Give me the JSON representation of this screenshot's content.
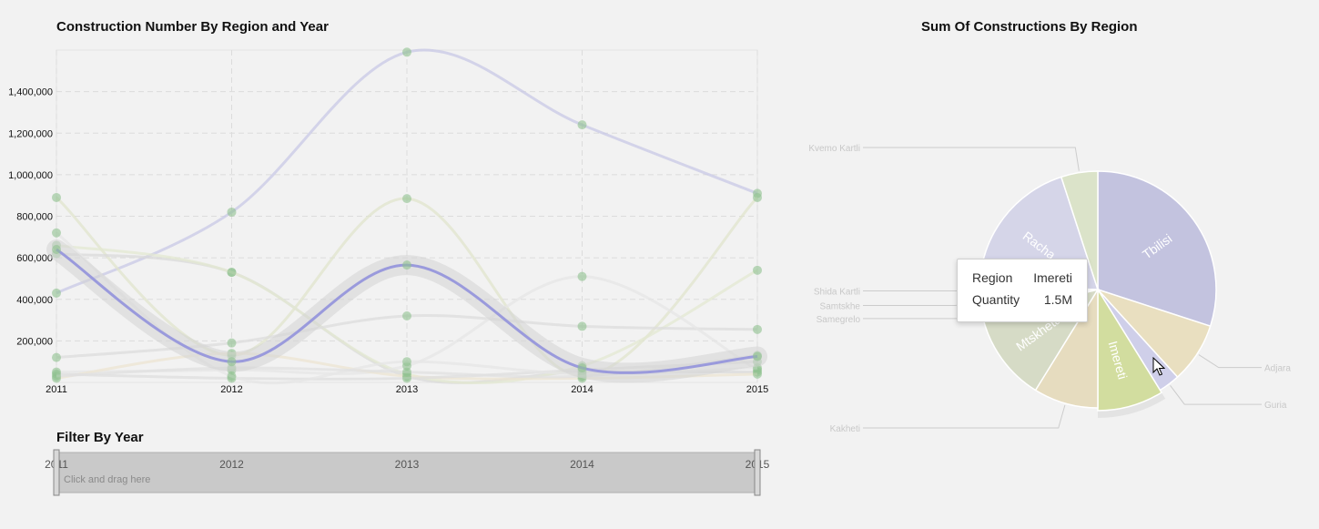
{
  "titles": {
    "line": "Construction Number By Region and Year",
    "pie": "Sum Of Constructions By Region",
    "filter": "Filter By Year"
  },
  "filter": {
    "hint": "Click and drag here",
    "years": [
      "2011",
      "2012",
      "2013",
      "2014",
      "2015"
    ],
    "range": [
      "2011",
      "2015"
    ]
  },
  "tooltip": {
    "region_label": "Region",
    "region_value": "Imereti",
    "quantity_label": "Quantity",
    "quantity_value": "1.5M"
  },
  "colors": {
    "highlight": "#9a9adc",
    "marker": "#8fc28f",
    "purple": "#c3c3df",
    "green": "#d8e2bd",
    "sand": "#e9dfc0",
    "grey": "#cfcfcf"
  },
  "chart_data": [
    {
      "type": "line",
      "title": "Construction Number By Region and Year",
      "x": [
        "2011",
        "2012",
        "2013",
        "2014",
        "2015"
      ],
      "yticks": [
        200000,
        400000,
        600000,
        800000,
        1000000,
        1200000,
        1400000
      ],
      "ytick_labels": [
        "200,000",
        "400,000",
        "600,000",
        "800,000",
        "1,000,000",
        "1,200,000",
        "1,400,000"
      ],
      "ylim": [
        0,
        1600000
      ],
      "grid": true,
      "highlighted_series": "Imereti",
      "series": [
        {
          "name": "Tbilisi",
          "color": "#c8c8e6",
          "values": [
            430000,
            820000,
            1590000,
            1240000,
            910000
          ]
        },
        {
          "name": "Imereti",
          "color": "#9a9adc",
          "values": [
            640000,
            100000,
            565000,
            70000,
            125000
          ]
        },
        {
          "name": "Adjara",
          "color": "#e0e4cc",
          "values": [
            890000,
            130000,
            885000,
            30000,
            890000
          ]
        },
        {
          "name": "Racha",
          "color": "#d9d9d9",
          "values": [
            620000,
            530000,
            30000,
            50000,
            50000
          ]
        },
        {
          "name": "Kvemo Kartli",
          "color": "#e3e8d2",
          "values": [
            660000,
            530000,
            40000,
            80000,
            540000
          ]
        },
        {
          "name": "Mtskheta",
          "color": "#dcdcdc",
          "values": [
            120000,
            190000,
            320000,
            270000,
            255000
          ]
        },
        {
          "name": "Kakheti",
          "color": "#e5e5e5",
          "values": [
            50000,
            60000,
            80000,
            510000,
            60000
          ]
        },
        {
          "name": "Shida Kartli",
          "color": "#ece4d2",
          "values": [
            20000,
            140000,
            30000,
            20000,
            40000
          ]
        },
        {
          "name": "Samtskhe",
          "color": "#dedede",
          "values": [
            40000,
            20000,
            20000,
            60000,
            100000
          ]
        },
        {
          "name": "Samegrelo",
          "color": "#e6e6e6",
          "values": [
            720000,
            30000,
            100000,
            40000,
            70000
          ]
        },
        {
          "name": "Guria",
          "color": "#e0e0e0",
          "values": [
            30000,
            70000,
            50000,
            30000,
            130000
          ]
        }
      ]
    },
    {
      "type": "pie",
      "title": "Sum Of Constructions By Region",
      "highlighted": "Imereti",
      "slices": [
        {
          "name": "Tbilisi",
          "value": 5100000,
          "color": "#c3c3df",
          "inside_label": true,
          "label_color": "#ffffff",
          "label_side": "inside"
        },
        {
          "name": "Adjara",
          "value": 1400000,
          "color": "#e9dfc0",
          "inside_label": false,
          "label_side": "right"
        },
        {
          "name": "Guria",
          "value": 500000,
          "color": "#cfcfe9",
          "inside_label": false,
          "label_side": "right"
        },
        {
          "name": "Imereti",
          "value": 1500000,
          "color": "#d2dd9f",
          "inside_label": true,
          "label_color": "#ffffff",
          "label_side": "inside"
        },
        {
          "name": "Kakheti",
          "value": 1500000,
          "color": "#e6dcbf",
          "inside_label": false,
          "label_side": "left"
        },
        {
          "name": "Mtskheta",
          "value": 2100000,
          "color": "#d6dbc6",
          "inside_label": true,
          "label_color": "#ffffff",
          "label_side": "inside"
        },
        {
          "name": "Samegrelo",
          "value": 200000,
          "color": "#c7c7db",
          "inside_label": false,
          "label_side": "left"
        },
        {
          "name": "Samtskhe",
          "value": 300000,
          "color": "#b9b9c6",
          "inside_label": false,
          "label_side": "left"
        },
        {
          "name": "Shida Kartli",
          "value": 250000,
          "color": "#d3d3e5",
          "inside_label": false,
          "label_side": "left"
        },
        {
          "name": "Racha",
          "value": 3300000,
          "color": "#d5d5e8",
          "inside_label": true,
          "label_color": "#ffffff",
          "label_side": "inside"
        },
        {
          "name": "Kvemo Kartli",
          "value": 850000,
          "color": "#dbe3c9",
          "inside_label": false,
          "label_side": "left"
        }
      ]
    }
  ]
}
